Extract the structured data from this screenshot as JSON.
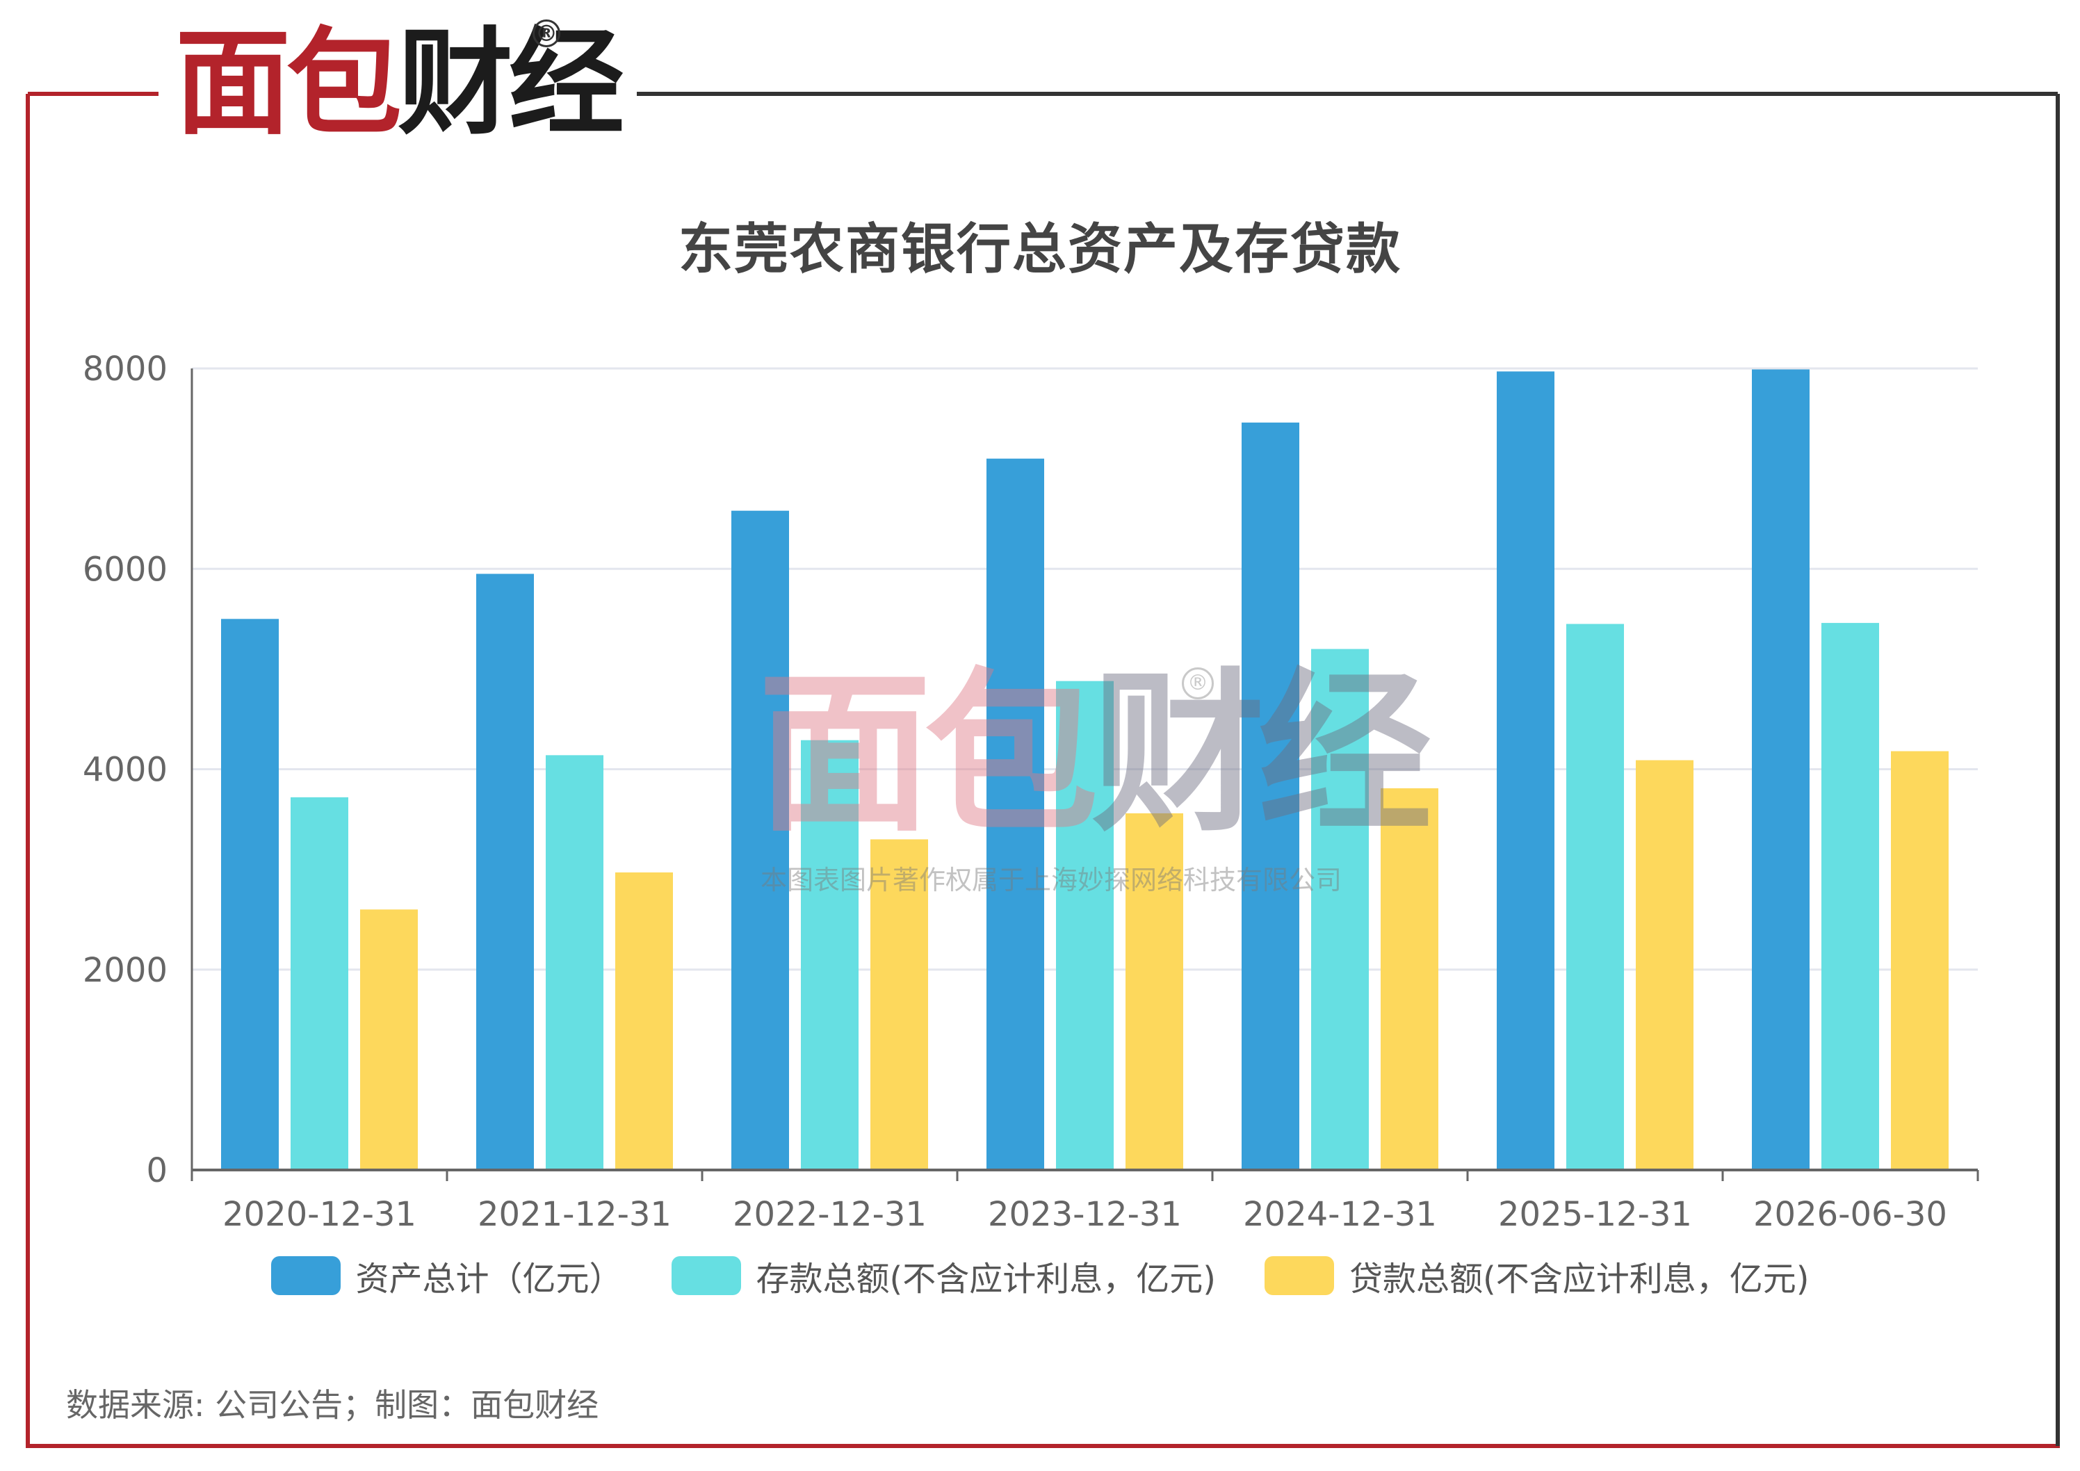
{
  "logo": {
    "part1": "面包",
    "part2": "财经",
    "reg_mark": "®"
  },
  "colors": {
    "frame_red": "#b3232b",
    "frame_dark": "#333333",
    "series_assets": "#379fd9",
    "series_deposits": "#66dfe2",
    "series_loans": "#fdd85c"
  },
  "chart_data": {
    "type": "bar",
    "title": "东莞农商银行总资产及存贷款",
    "categories": [
      "2020-12-31",
      "2021-12-31",
      "2022-12-31",
      "2023-12-31",
      "2024-12-31",
      "2025-12-31",
      "2026-06-30"
    ],
    "series": [
      {
        "name": "资产总计（亿元）",
        "values": [
          5500,
          5950,
          6580,
          7100,
          7460,
          7970,
          7990
        ]
      },
      {
        "name": "存款总额(不含应计利息，亿元)",
        "values": [
          3720,
          4140,
          4290,
          4880,
          5200,
          5450,
          5460
        ]
      },
      {
        "name": "贷款总额(不含应计利息，亿元)",
        "values": [
          2600,
          2970,
          3300,
          3560,
          3810,
          4090,
          4180
        ]
      }
    ],
    "yticks": [
      "0",
      "2000",
      "4000",
      "6000",
      "8000"
    ],
    "ylim": [
      0,
      8000
    ],
    "grid": true,
    "legend_position": "bottom"
  },
  "watermark": {
    "main_part1": "面包",
    "main_part2": "财经",
    "reg_mark": "®",
    "sub": "本图表图片著作权属于上海妙探网络科技有限公司"
  },
  "source_note": "数据来源: 公司公告；制图：面包财经"
}
